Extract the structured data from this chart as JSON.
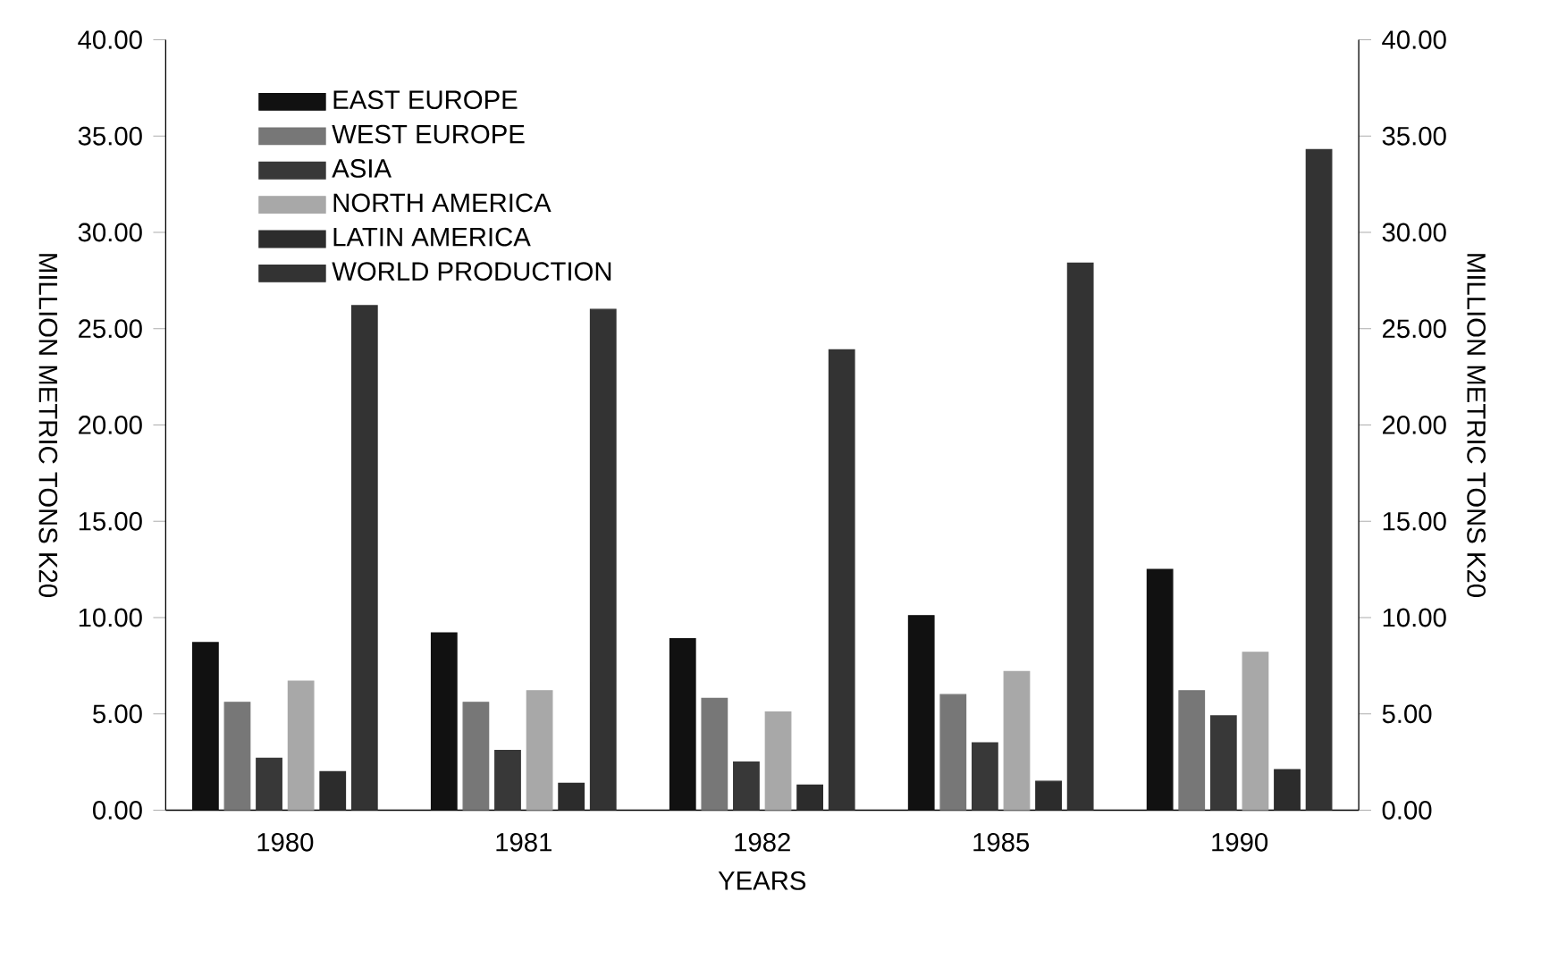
{
  "chart_data": {
    "type": "bar",
    "xlabel": "YEARS",
    "ylabel": "MILLION METRIC TONS K20",
    "y2label": "MILLION METRIC TONS K20",
    "categories": [
      "1980",
      "1981",
      "1982",
      "1985",
      "1990"
    ],
    "series": [
      {
        "name": "EAST EUROPE",
        "color": "#111111",
        "values": [
          8.7,
          9.2,
          8.9,
          10.1,
          12.5
        ]
      },
      {
        "name": "WEST EUROPE",
        "color": "#777777",
        "values": [
          5.6,
          5.6,
          5.8,
          6.0,
          6.2
        ]
      },
      {
        "name": "ASIA",
        "color": "#383838",
        "values": [
          2.7,
          3.1,
          2.5,
          3.5,
          4.9
        ]
      },
      {
        "name": "NORTH AMERICA",
        "color": "#a8a8a8",
        "values": [
          6.7,
          6.2,
          5.1,
          7.2,
          8.2
        ]
      },
      {
        "name": "LATIN AMERICA",
        "color": "#2c2c2c",
        "values": [
          2.0,
          1.4,
          1.3,
          1.5,
          2.1
        ]
      },
      {
        "name": "WORLD PRODUCTION",
        "color": "#333333",
        "values": [
          26.2,
          26.0,
          23.9,
          28.4,
          34.3
        ]
      }
    ],
    "ylim": [
      0,
      40
    ],
    "yticks": [
      {
        "value": 0,
        "label": "0.00"
      },
      {
        "value": 5,
        "label": "5.00"
      },
      {
        "value": 10,
        "label": "10.00"
      },
      {
        "value": 15,
        "label": "15.00"
      },
      {
        "value": 20,
        "label": "20.00"
      },
      {
        "value": 25,
        "label": "25.00"
      },
      {
        "value": 30,
        "label": "30.00"
      },
      {
        "value": 35,
        "label": "35.00"
      },
      {
        "value": 40,
        "label": "40.00"
      }
    ],
    "y2lim": [
      0,
      40
    ],
    "y2ticks": [
      {
        "value": 0,
        "label": "0.00"
      },
      {
        "value": 5,
        "label": "5.00"
      },
      {
        "value": 10,
        "label": "10.00"
      },
      {
        "value": 15,
        "label": "15.00"
      },
      {
        "value": 20,
        "label": "20.00"
      },
      {
        "value": 25,
        "label": "25.00"
      },
      {
        "value": 30,
        "label": "30.00"
      },
      {
        "value": 35,
        "label": "35.00"
      },
      {
        "value": 40,
        "label": "40.00"
      }
    ],
    "legend": "top left",
    "grid": false
  }
}
